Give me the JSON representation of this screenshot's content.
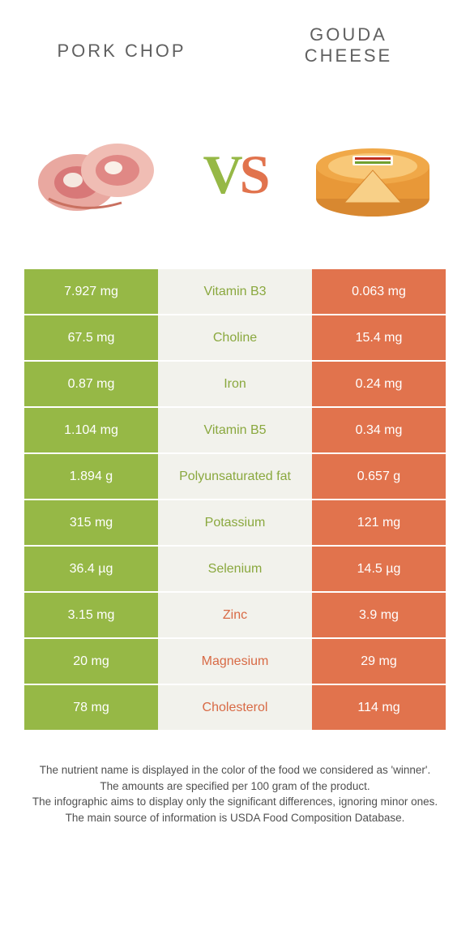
{
  "header": {
    "left_title": "Pork chop",
    "right_title": "Gouda cheese",
    "vs_v": "V",
    "vs_s": "S"
  },
  "colors": {
    "green": "#96b846",
    "orange": "#e1734d",
    "mid_bg": "#f2f2ec",
    "text": "#555555"
  },
  "rows": [
    {
      "left": "7.927 mg",
      "label": "Vitamin B3",
      "winner": "green",
      "right": "0.063 mg"
    },
    {
      "left": "67.5 mg",
      "label": "Choline",
      "winner": "green",
      "right": "15.4 mg"
    },
    {
      "left": "0.87 mg",
      "label": "Iron",
      "winner": "green",
      "right": "0.24 mg"
    },
    {
      "left": "1.104 mg",
      "label": "Vitamin B5",
      "winner": "green",
      "right": "0.34 mg"
    },
    {
      "left": "1.894 g",
      "label": "Polyunsaturated fat",
      "winner": "green",
      "right": "0.657 g"
    },
    {
      "left": "315 mg",
      "label": "Potassium",
      "winner": "green",
      "right": "121 mg"
    },
    {
      "left": "36.4 µg",
      "label": "Selenium",
      "winner": "green",
      "right": "14.5 µg"
    },
    {
      "left": "3.15 mg",
      "label": "Zinc",
      "winner": "orange",
      "right": "3.9 mg"
    },
    {
      "left": "20 mg",
      "label": "Magnesium",
      "winner": "orange",
      "right": "29 mg"
    },
    {
      "left": "78 mg",
      "label": "Cholesterol",
      "winner": "orange",
      "right": "114 mg"
    }
  ],
  "footnote": {
    "line1": "The nutrient name is displayed in the color of the food we considered as 'winner'.",
    "line2": "The amounts are specified per 100 gram of the product.",
    "line3": "The infographic aims to display only the significant differences, ignoring minor ones.",
    "line4": "The main source of information is USDA Food Composition Database."
  }
}
